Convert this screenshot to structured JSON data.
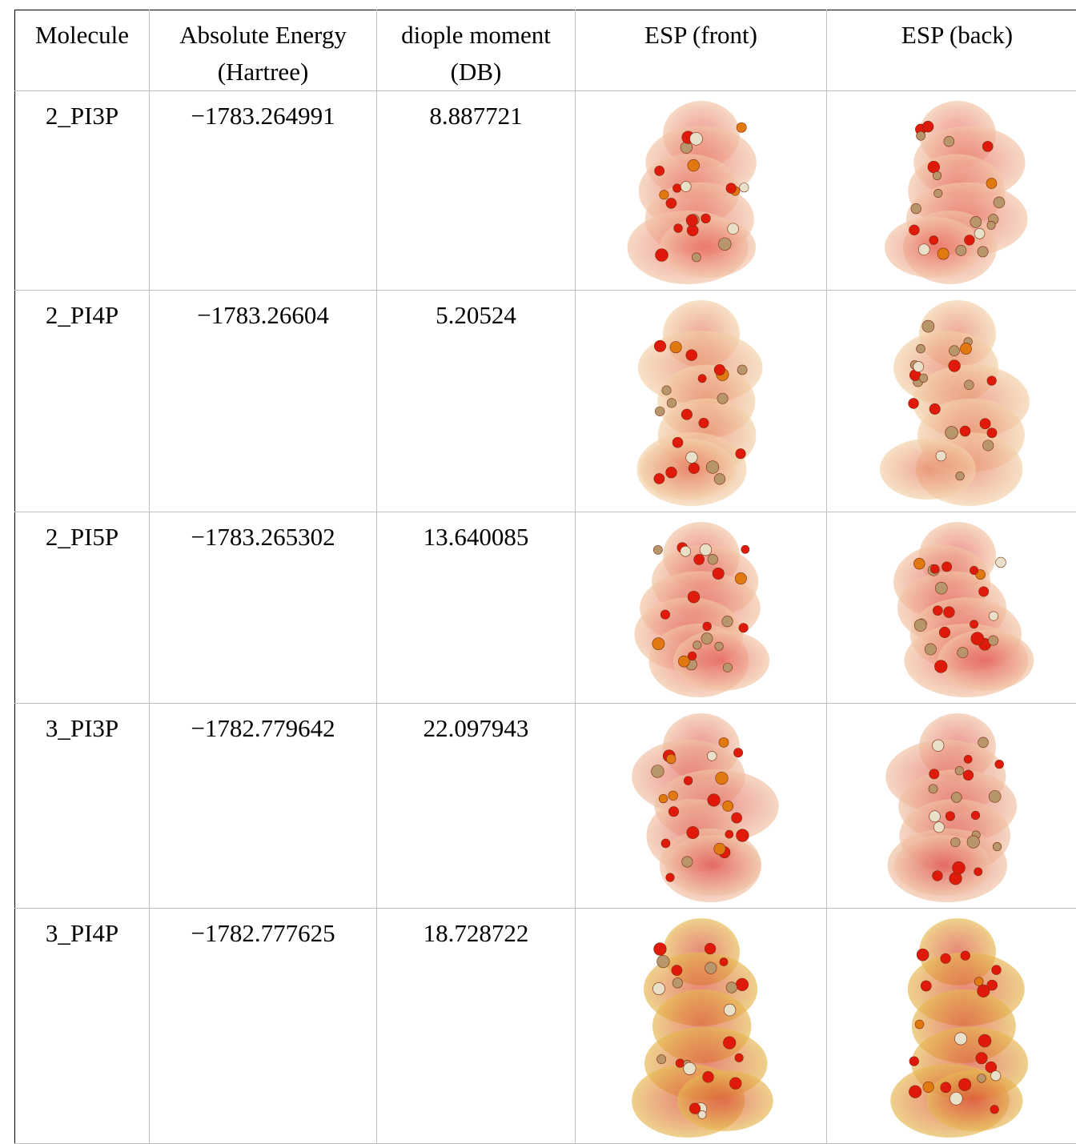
{
  "table": {
    "header": [
      "Molecule",
      "Absolute Energy (Hartree)",
      "diople moment (DB)",
      "ESP (front)",
      "ESP (back)"
    ],
    "rows": [
      [
        "2_PI3P",
        "−1783.264991",
        "8.887721"
      ],
      [
        "2_PI4P",
        "−1783.26604",
        "5.20524"
      ],
      [
        "2_PI5P",
        "−1783.265302",
        "13.640085"
      ],
      [
        "3_PI3P",
        "−1782.779642",
        "22.097943"
      ],
      [
        "3_PI4P",
        "−1782.777625",
        "18.728722"
      ]
    ]
  }
}
